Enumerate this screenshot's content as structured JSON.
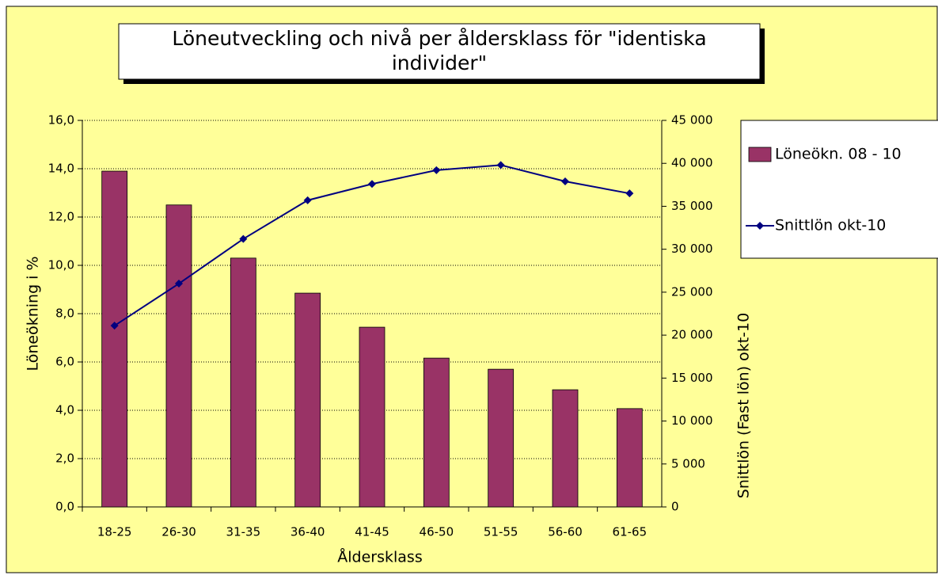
{
  "chart_data": {
    "type": "bar_line",
    "title": "Löneutveckling och nivå per åldersklass för \"identiska individer\"",
    "x_label": "Åldersklass",
    "y_label": "Löneökning i %",
    "y2_label": "Snittlön (Fast lön) okt-10",
    "categories": [
      "18-25",
      "26-30",
      "31-35",
      "36-40",
      "41-45",
      "46-50",
      "51-55",
      "56-60",
      "61-65"
    ],
    "series": [
      {
        "name": "Löneökn. 08 - 10",
        "type": "bar",
        "color": "#993366",
        "values": [
          13.9,
          12.5,
          10.3,
          8.85,
          7.44,
          6.16,
          5.7,
          4.85,
          4.07
        ]
      },
      {
        "name": "Snittlön okt-10",
        "type": "line",
        "axis": "y2",
        "color": "#000080",
        "values": [
          21100,
          26000,
          31200,
          35700,
          37600,
          39200,
          39800,
          37900,
          36500
        ]
      }
    ],
    "ylim": [
      0,
      16
    ],
    "yticks": [
      {
        "value": 0,
        "label": "0,0"
      },
      {
        "value": 2,
        "label": "2,0"
      },
      {
        "value": 4,
        "label": "4,0"
      },
      {
        "value": 6,
        "label": "6,0"
      },
      {
        "value": 8,
        "label": "8,0"
      },
      {
        "value": 10,
        "label": "10,0"
      },
      {
        "value": 12,
        "label": "12,0"
      },
      {
        "value": 14,
        "label": "14,0"
      },
      {
        "value": 16,
        "label": "16,0"
      }
    ],
    "y2lim": [
      0,
      45000
    ],
    "y2ticks": [
      0,
      {
        "value": 5000,
        "label": "5 000"
      },
      {
        "value": 10000,
        "label": "10 000"
      },
      {
        "value": 15000,
        "label": "15 000"
      },
      {
        "value": 20000,
        "label": "20 000"
      },
      {
        "value": 25000,
        "label": "25 000"
      },
      {
        "value": 30000,
        "label": "30 000"
      },
      {
        "value": 35000,
        "label": "35 000"
      },
      {
        "value": 40000,
        "label": "40 000"
      },
      {
        "value": 45000,
        "label": "45 000"
      }
    ],
    "grid": true,
    "legend": "right"
  }
}
